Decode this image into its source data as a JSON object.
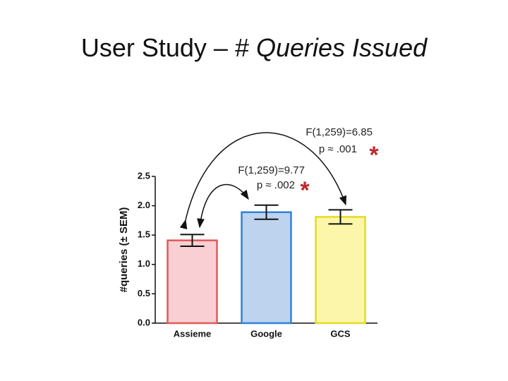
{
  "chart_data": {
    "type": "bar",
    "title": "User Study – #",
    "title_italic": "Queries Issued",
    "ylabel": "#queries (± SEM)",
    "categories": [
      "Assieme",
      "Google",
      "GCS"
    ],
    "values": [
      1.41,
      1.89,
      1.81
    ],
    "errors": [
      0.1,
      0.12,
      0.12
    ],
    "colors": [
      "#f9cfd3",
      "#bdd3ee",
      "#fbf6a9"
    ],
    "edge_colors": [
      "#e05a5a",
      "#2f82d8",
      "#e6da22"
    ],
    "ylim": [
      0,
      2.5
    ],
    "yticks": [
      {
        "value": 0,
        "label": "0.0"
      },
      0.5,
      {
        "value": 1,
        "label": "1.0"
      },
      1.5,
      {
        "value": 2,
        "label": "2.0"
      },
      2.5
    ],
    "annotations": [
      {
        "text": "F(1,259)=6.85",
        "p": "p ≈ .001",
        "mark": "*"
      },
      {
        "text": "F(1,259)=9.77",
        "p": "p ≈ .002",
        "mark": "*"
      }
    ]
  }
}
